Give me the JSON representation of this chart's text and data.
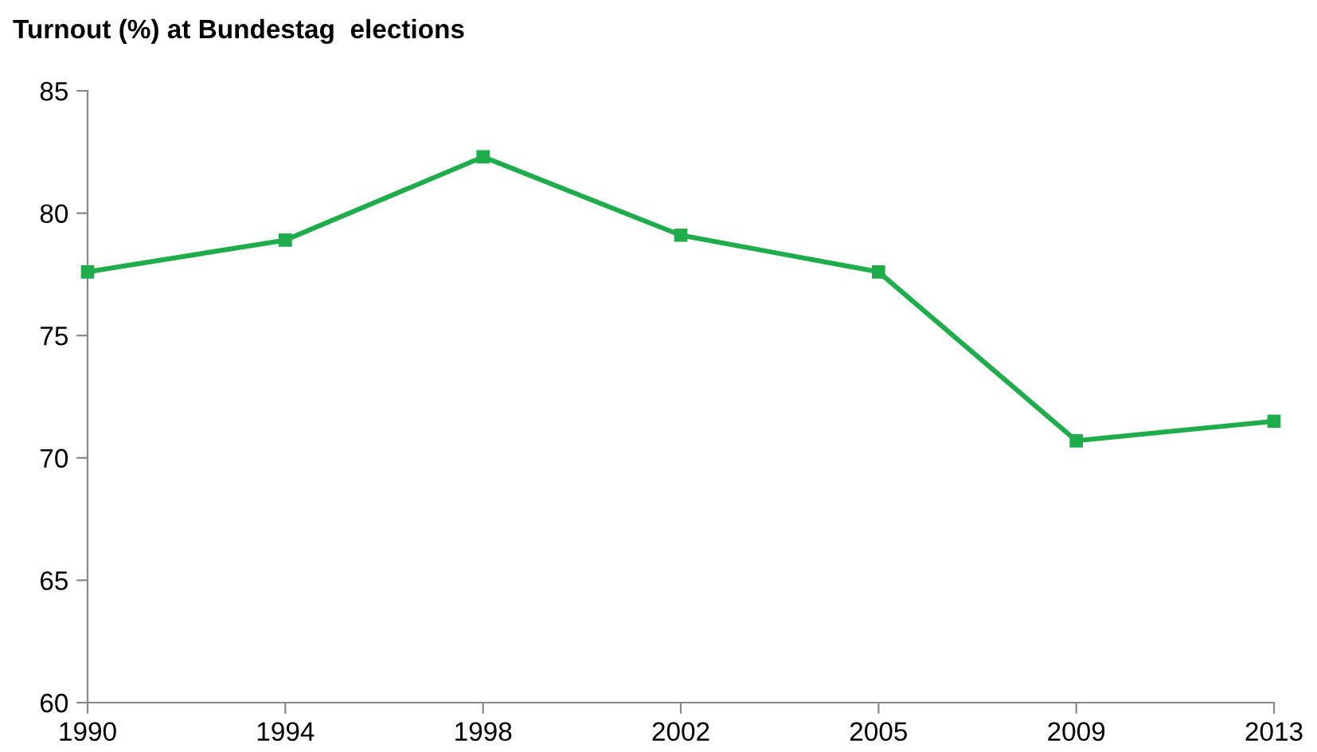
{
  "chart_data": {
    "type": "line",
    "title": "Turnout (%) at Bundestag  elections",
    "categories": [
      "1990",
      "1994",
      "1998",
      "2002",
      "2005",
      "2009",
      "2013"
    ],
    "series": [
      {
        "color": "#1fad4b",
        "values": [
          77.6,
          78.9,
          82.3,
          79.1,
          77.6,
          70.7,
          71.5
        ]
      }
    ],
    "ylim": [
      60,
      85
    ],
    "yticks": [
      60,
      65,
      70,
      75,
      80,
      85
    ],
    "grid": false,
    "legend": false,
    "marker": "square",
    "line_style": "solid"
  }
}
